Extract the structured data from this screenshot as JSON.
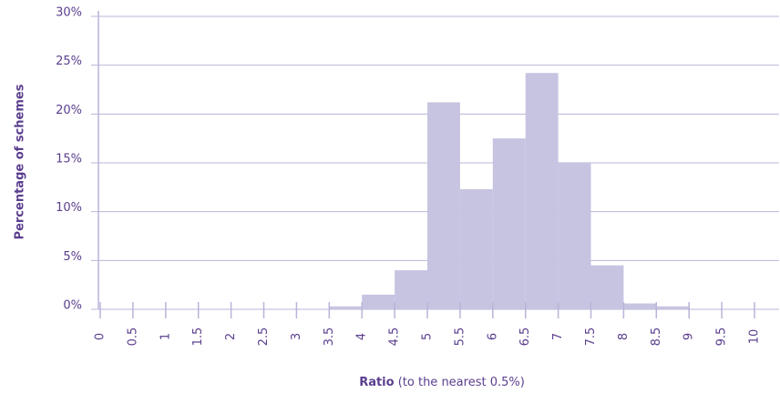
{
  "chart_data": {
    "type": "histogram",
    "ylabel": "Percentage of schemes",
    "xlabel": "Ratio",
    "xlabel_note": "(to the nearest 0.5%)",
    "bins": [
      0,
      0.5,
      1,
      1.5,
      2,
      2.5,
      3,
      3.5,
      4,
      4.5,
      5,
      5.5,
      6,
      6.5,
      7,
      7.5,
      8,
      8.5,
      9,
      9.5,
      10
    ],
    "counts": [
      0,
      0,
      0,
      0,
      0,
      0,
      0,
      0.3,
      1.5,
      4,
      21.2,
      12.3,
      17.5,
      24.2,
      15,
      4.5,
      0.6,
      0.3,
      0,
      0
    ],
    "color": "#c6c4e1",
    "xlim": [
      0,
      10
    ],
    "xticks": [
      0,
      0.5,
      1,
      1.5,
      2,
      2.5,
      3,
      3.5,
      4,
      4.5,
      5,
      5.5,
      6,
      6.5,
      7,
      7.5,
      8,
      8.5,
      9,
      9.5,
      10
    ],
    "ylim": [
      0,
      30
    ],
    "yticks": [
      {
        "value": 0,
        "label": "0%"
      },
      {
        "value": 5,
        "label": "5%"
      },
      {
        "value": 10,
        "label": "10%"
      },
      {
        "value": 15,
        "label": "15%"
      },
      {
        "value": 20,
        "label": "20%"
      },
      {
        "value": 25,
        "label": "25%"
      },
      {
        "value": 30,
        "label": "30%"
      }
    ],
    "grid": true
  }
}
